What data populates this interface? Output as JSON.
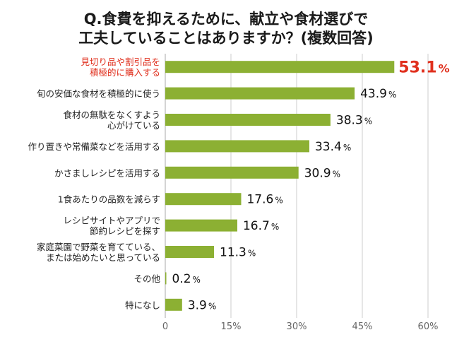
{
  "chart_data": {
    "type": "bar",
    "orientation": "horizontal",
    "title": [
      "Q.食費を抑えるために、献立や食材選びで",
      "工夫していることはありますか？(複数回答)"
    ],
    "categories": [
      [
        "見切り品や割引品を",
        "積極的に購入する"
      ],
      [
        "旬の安価な食材を積極的に使う"
      ],
      [
        "食材の無駄をなくすよう",
        "心がけている"
      ],
      [
        "作り置きや常備菜などを活用する"
      ],
      [
        "かさましレシピを活用する"
      ],
      [
        "1食あたりの品数を減らす"
      ],
      [
        "レシピサイトやアプリで",
        "節約レシピを探す"
      ],
      [
        "家庭菜園で野菜を育てている、",
        "または始めたいと思っている"
      ],
      [
        "その他"
      ],
      [
        "特になし"
      ]
    ],
    "values": [
      53.1,
      43.9,
      38.3,
      33.4,
      30.9,
      17.6,
      16.7,
      11.3,
      0.2,
      3.9
    ],
    "value_suffix": "%",
    "highlight_index": 0,
    "xlim": [
      0,
      60
    ],
    "xticks": [
      0,
      15,
      30,
      45,
      60
    ],
    "xtick_labels": [
      "0",
      "15%",
      "30%",
      "45%",
      "60%"
    ],
    "grid": "vertical",
    "colors": {
      "bar": "#8cb033",
      "highlight_text": "#e0301e",
      "grid": "#cccccc"
    }
  }
}
